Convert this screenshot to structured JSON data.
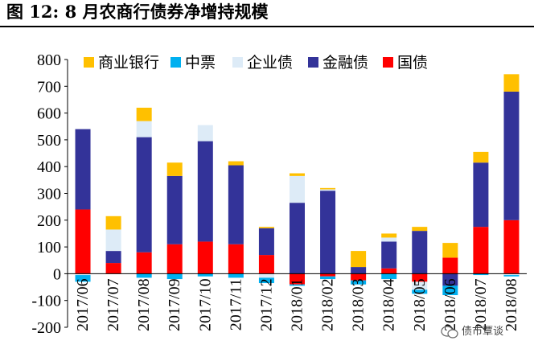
{
  "figure": {
    "title": "图 12:  8 月农商行债券净增持规模"
  },
  "watermark": {
    "text": "债市覃谈"
  },
  "chart_data": {
    "type": "bar",
    "stacked": true,
    "categories": [
      "2017/06",
      "2017/07",
      "2017/08",
      "2017/09",
      "2017/10",
      "2017/11",
      "2017/12",
      "2018/01",
      "2018/02",
      "2018/03",
      "2018/04",
      "2018/05",
      "2018/06",
      "2018/07",
      "2018/08"
    ],
    "ylim": [
      -200,
      800
    ],
    "yticks": [
      -200,
      -100,
      0,
      100,
      200,
      300,
      400,
      500,
      600,
      700,
      800
    ],
    "grid": false,
    "legend_position": "top",
    "series": [
      {
        "name": "商业银行",
        "color": "#FFC000",
        "values": [
          0,
          50,
          50,
          50,
          0,
          15,
          5,
          10,
          5,
          60,
          15,
          15,
          55,
          40,
          65
        ]
      },
      {
        "name": "中票",
        "color": "#00B0F0",
        "values": [
          -25,
          0,
          -15,
          -20,
          -10,
          -15,
          -20,
          -5,
          -10,
          -15,
          -20,
          -15,
          -35,
          -5,
          -5
        ]
      },
      {
        "name": "企业债",
        "color": "#DDEBF7",
        "values": [
          -5,
          80,
          60,
          0,
          60,
          0,
          -15,
          100,
          5,
          0,
          15,
          -30,
          0,
          0,
          -5
        ]
      },
      {
        "name": "金融债",
        "color": "#333399",
        "values": [
          300,
          45,
          430,
          255,
          375,
          295,
          100,
          265,
          310,
          25,
          100,
          160,
          -45,
          240,
          480
        ]
      },
      {
        "name": "国债",
        "color": "#FF0000",
        "values": [
          240,
          40,
          80,
          110,
          120,
          110,
          70,
          -40,
          -10,
          -25,
          20,
          -30,
          60,
          175,
          200
        ]
      }
    ]
  }
}
